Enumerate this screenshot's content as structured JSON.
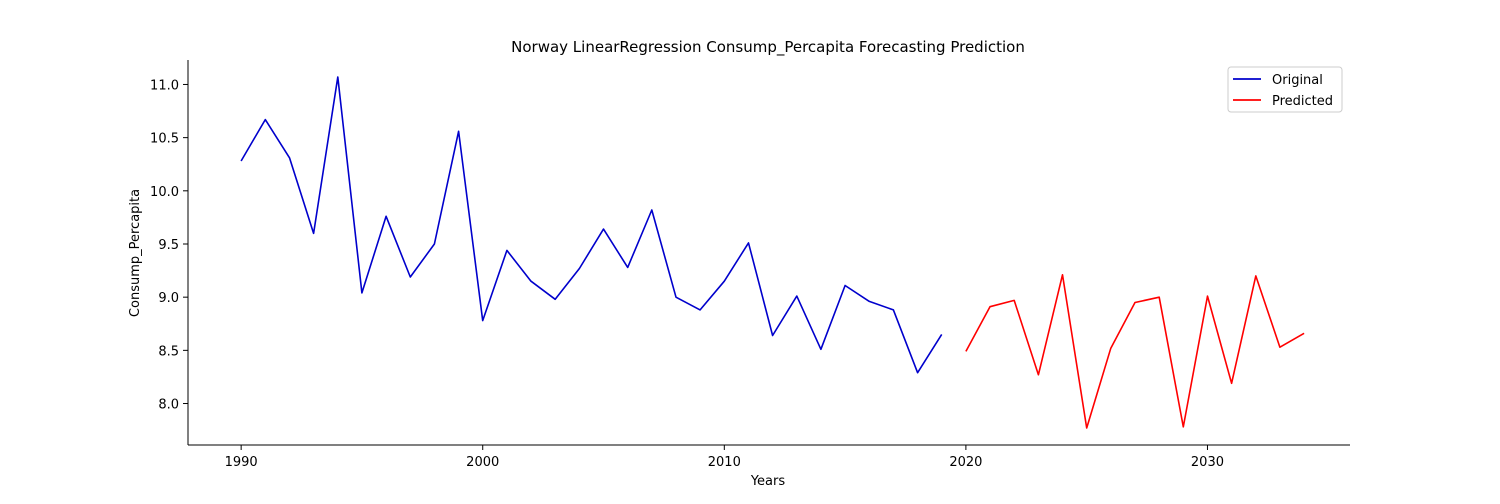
{
  "chart_data": {
    "type": "line",
    "title": "Norway LinearRegression Consump_Percapita Forecasting Prediction",
    "xlabel": "Years",
    "ylabel": "Consump_Percapita",
    "xlim": [
      1987.8,
      2035.9
    ],
    "ylim": [
      7.61,
      11.23
    ],
    "xticks": [
      1990,
      2000,
      2010,
      2020,
      2030
    ],
    "yticks": [
      8.0,
      8.5,
      9.0,
      9.5,
      10.0,
      10.5,
      11.0
    ],
    "ytick_labels": [
      "8.0",
      "8.5",
      "9.0",
      "9.5",
      "10.0",
      "10.5",
      "11.0"
    ],
    "grid": false,
    "legend_position": "top-right",
    "series": [
      {
        "name": "Original",
        "color": "#0000cc",
        "x": [
          1990,
          1991,
          1992,
          1993,
          1994,
          1995,
          1996,
          1997,
          1998,
          1999,
          2000,
          2001,
          2002,
          2003,
          2004,
          2005,
          2006,
          2007,
          2008,
          2009,
          2010,
          2011,
          2012,
          2013,
          2014,
          2015,
          2016,
          2017,
          2018,
          2019
        ],
        "values": [
          10.28,
          10.67,
          10.31,
          9.6,
          11.07,
          9.04,
          9.76,
          9.19,
          9.5,
          10.56,
          8.78,
          9.44,
          9.15,
          8.98,
          9.27,
          9.64,
          9.28,
          9.82,
          9.0,
          8.88,
          9.15,
          9.51,
          8.64,
          9.01,
          8.51,
          9.11,
          8.96,
          8.88,
          8.29,
          8.65
        ]
      },
      {
        "name": "Predicted",
        "color": "#ff0000",
        "x": [
          2020,
          2021,
          2022,
          2023,
          2024,
          2025,
          2026,
          2027,
          2028,
          2029,
          2030,
          2031,
          2032,
          2033,
          2034
        ],
        "values": [
          8.49,
          8.91,
          8.97,
          8.27,
          9.21,
          7.77,
          8.52,
          8.95,
          9.0,
          7.78,
          9.01,
          8.19,
          9.2,
          8.53,
          8.66
        ]
      }
    ]
  }
}
